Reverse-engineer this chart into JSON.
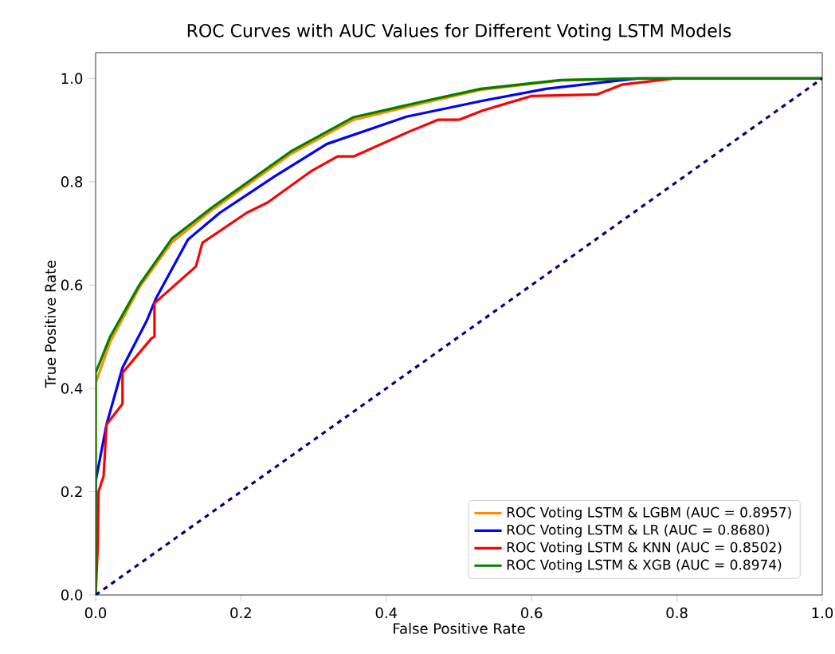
{
  "chart_data": {
    "type": "line",
    "title": "ROC Curves with AUC Values for Different Voting LSTM Models",
    "xlabel": "False Positive Rate",
    "ylabel": "True Positive Rate",
    "xlim": [
      0,
      1
    ],
    "ylim": [
      0,
      1.05
    ],
    "xticks": [
      {
        "value": 0,
        "label": "0.0"
      },
      0.2,
      0.4,
      0.6,
      0.8,
      {
        "value": 1,
        "label": "1.0"
      }
    ],
    "yticks": [
      {
        "value": 0,
        "label": "0.0"
      },
      0.2,
      0.4,
      0.6,
      0.8,
      {
        "value": 1,
        "label": "1.0"
      }
    ],
    "legend": "bottom right",
    "grid": false,
    "marker": "none",
    "series": [
      {
        "name": "ROC Voting LSTM & LGBM (AUC = 0.8957)",
        "color": "#ff8c00",
        "x": [
          0,
          0,
          0.02,
          0.06,
          0.105,
          0.16,
          0.27,
          0.355,
          0.465,
          0.53,
          0.64,
          0.75,
          1
        ],
        "values": [
          0,
          0.41,
          0.49,
          0.595,
          0.683,
          0.745,
          0.855,
          0.92,
          0.957,
          0.978,
          0.996,
          1,
          1
        ]
      },
      {
        "name": "ROC Voting LSTM & LR (AUC = 0.8680)",
        "color": "#0000ff",
        "x": [
          0,
          0,
          0.015,
          0.037,
          0.07,
          0.083,
          0.127,
          0.171,
          0.246,
          0.318,
          0.428,
          0.533,
          0.62,
          0.745,
          1
        ],
        "values": [
          0,
          0.22,
          0.33,
          0.44,
          0.53,
          0.574,
          0.688,
          0.74,
          0.81,
          0.873,
          0.926,
          0.957,
          0.98,
          1,
          1
        ]
      },
      {
        "name": "ROC Voting LSTM & KNN (AUC = 0.8502)",
        "color": "#ff0000",
        "x": [
          0,
          0.003,
          0.004,
          0.011,
          0.015,
          0.037,
          0.037,
          0.077,
          0.081,
          0.081,
          0.138,
          0.147,
          0.208,
          0.237,
          0.296,
          0.333,
          0.355,
          0.428,
          0.471,
          0.5,
          0.533,
          0.6,
          0.69,
          0.724,
          0.796,
          1
        ],
        "values": [
          0,
          0.096,
          0.2,
          0.23,
          0.33,
          0.37,
          0.43,
          0.497,
          0.5,
          0.565,
          0.636,
          0.682,
          0.74,
          0.76,
          0.82,
          0.849,
          0.849,
          0.895,
          0.92,
          0.92,
          0.938,
          0.966,
          0.969,
          0.988,
          1,
          1
        ]
      },
      {
        "name": "ROC Voting LSTM & XGB (AUC = 0.8974)",
        "color": "#008000",
        "x": [
          0,
          0,
          0.02,
          0.06,
          0.105,
          0.16,
          0.27,
          0.355,
          0.465,
          0.53,
          0.64,
          0.75,
          1
        ],
        "values": [
          0,
          0.43,
          0.5,
          0.6,
          0.69,
          0.75,
          0.86,
          0.925,
          0.96,
          0.98,
          0.997,
          1,
          1
        ]
      },
      {
        "color": "#000080",
        "line_style": "dashed",
        "x": [
          0,
          1
        ],
        "values": [
          0,
          1
        ]
      }
    ]
  }
}
